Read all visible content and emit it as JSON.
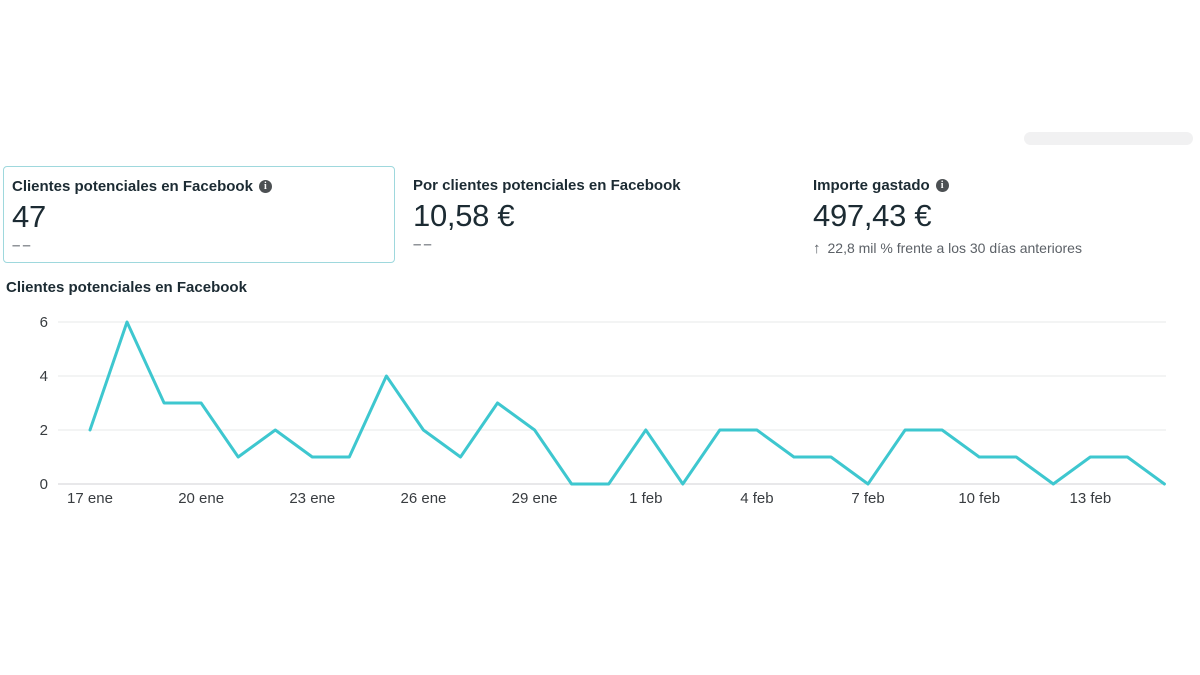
{
  "icons": {
    "info_glyph": "i"
  },
  "metrics": {
    "cards": [
      {
        "title": "Clientes potenciales en Facebook",
        "value": "47",
        "sub": "––"
      },
      {
        "title": "Por clientes potenciales en Facebook",
        "value": "10,58 €",
        "sub": "––"
      },
      {
        "title": "Importe gastado",
        "value": "497,43 €",
        "note_arrow": "↑",
        "note": "22,8 mil % frente a los 30 días anteriores"
      }
    ]
  },
  "chart_title": "Clientes potenciales en Facebook",
  "chart_data": {
    "type": "line",
    "title": "Clientes potenciales en Facebook",
    "categories": [
      "17 ene",
      "18 ene",
      "19 ene",
      "20 ene",
      "21 ene",
      "22 ene",
      "23 ene",
      "24 ene",
      "25 ene",
      "26 ene",
      "27 ene",
      "28 ene",
      "29 ene",
      "30 ene",
      "31 ene",
      "1 feb",
      "2 feb",
      "3 feb",
      "4 feb",
      "5 feb",
      "6 feb",
      "7 feb",
      "8 feb",
      "9 feb",
      "10 feb",
      "11 feb",
      "12 feb",
      "13 feb",
      "14 feb",
      "15 feb"
    ],
    "values": [
      2,
      6,
      3,
      3,
      1,
      2,
      1,
      1,
      4,
      2,
      1,
      3,
      2,
      0,
      0,
      2,
      0,
      2,
      2,
      1,
      1,
      0,
      2,
      2,
      1,
      1,
      0,
      1,
      1,
      0
    ],
    "x_tick_labels": [
      "17 ene",
      "20 ene",
      "23 ene",
      "26 ene",
      "29 ene",
      "1 feb",
      "4 feb",
      "7 feb",
      "10 feb",
      "13 feb"
    ],
    "y_ticks": [
      0,
      2,
      4,
      6
    ],
    "ylim": [
      0,
      6
    ],
    "xlabel": "",
    "ylabel": "",
    "grid": true,
    "legend": "none"
  },
  "colors": {
    "line": "#3ec7cf",
    "card_border": "#9ed8dd",
    "grid": "#e7e8ea",
    "grid_zero": "#d0d2d4",
    "text_dark": "#1c2b33",
    "text_gray": "#8e9297",
    "note_gray": "#5c6167",
    "tick_text": "#383c40",
    "skeleton": "#f1f1f2"
  }
}
